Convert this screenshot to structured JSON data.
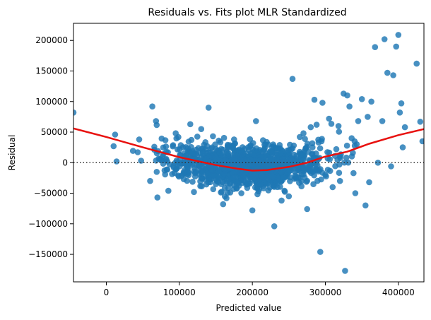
{
  "chart_data": {
    "type": "scatter",
    "title": "Residuals vs. Fits plot MLR Standardized",
    "xlabel": "Predicted value",
    "ylabel": "Residual",
    "xlim": [
      -45000,
      435000
    ],
    "ylim": [
      -195000,
      228000
    ],
    "xticks": [
      0,
      100000,
      200000,
      300000,
      400000
    ],
    "yticks": [
      -150000,
      -100000,
      -50000,
      0,
      50000,
      100000,
      150000,
      200000
    ],
    "xtick_labels": [
      "0",
      "100000",
      "200000",
      "300000",
      "400000"
    ],
    "ytick_labels": [
      "−150000",
      "−100000",
      "−50000",
      "0",
      "50000",
      "100000",
      "150000",
      "200000"
    ],
    "grid": false,
    "reference_line": {
      "y": 0,
      "style": "dotted",
      "color": "#333333"
    },
    "point_color": "#1f77b4",
    "trend_color": "#e8110f",
    "outliers": [
      {
        "x": -45000,
        "y": 82000
      },
      {
        "x": 10000,
        "y": 27000
      },
      {
        "x": 12000,
        "y": 46000
      },
      {
        "x": 14000,
        "y": 2000
      },
      {
        "x": 63000,
        "y": 92000
      },
      {
        "x": 68000,
        "y": 68000
      },
      {
        "x": 70000,
        "y": -57000
      },
      {
        "x": 85000,
        "y": -46000
      },
      {
        "x": 140000,
        "y": 90000
      },
      {
        "x": 175000,
        "y": 38000
      },
      {
        "x": 200000,
        "y": -78000
      },
      {
        "x": 205000,
        "y": 68000
      },
      {
        "x": 230000,
        "y": -104000
      },
      {
        "x": 255000,
        "y": 137000
      },
      {
        "x": 265000,
        "y": 42000
      },
      {
        "x": 275000,
        "y": -76000
      },
      {
        "x": 285000,
        "y": 103000
      },
      {
        "x": 288000,
        "y": 62000
      },
      {
        "x": 293000,
        "y": -146000
      },
      {
        "x": 296000,
        "y": 98000
      },
      {
        "x": 305000,
        "y": 72000
      },
      {
        "x": 318000,
        "y": 60000
      },
      {
        "x": 325000,
        "y": 113000
      },
      {
        "x": 327000,
        "y": -177000
      },
      {
        "x": 330000,
        "y": 110000
      },
      {
        "x": 333000,
        "y": 92000
      },
      {
        "x": 336000,
        "y": 40000
      },
      {
        "x": 341000,
        "y": -50000
      },
      {
        "x": 343000,
        "y": 30000
      },
      {
        "x": 350000,
        "y": 104000
      },
      {
        "x": 355000,
        "y": -70000
      },
      {
        "x": 358000,
        "y": 75000
      },
      {
        "x": 363000,
        "y": 100000
      },
      {
        "x": 368000,
        "y": 189000
      },
      {
        "x": 372000,
        "y": 0
      },
      {
        "x": 378000,
        "y": 68000
      },
      {
        "x": 381000,
        "y": 202000
      },
      {
        "x": 385000,
        "y": 147000
      },
      {
        "x": 390000,
        "y": -6000
      },
      {
        "x": 393000,
        "y": 143000
      },
      {
        "x": 397000,
        "y": 190000
      },
      {
        "x": 400000,
        "y": 209000
      },
      {
        "x": 402000,
        "y": 82000
      },
      {
        "x": 404000,
        "y": 97000
      },
      {
        "x": 406000,
        "y": 25000
      },
      {
        "x": 409000,
        "y": 58000
      },
      {
        "x": 425000,
        "y": 162000
      },
      {
        "x": 430000,
        "y": 67000
      },
      {
        "x": 433000,
        "y": 35000
      },
      {
        "x": 300000,
        "y": -20000
      },
      {
        "x": 310000,
        "y": -40000
      },
      {
        "x": 250000,
        "y": -55000
      },
      {
        "x": 240000,
        "y": -62000
      },
      {
        "x": 160000,
        "y": -68000
      },
      {
        "x": 120000,
        "y": -48000
      },
      {
        "x": 130000,
        "y": 55000
      },
      {
        "x": 115000,
        "y": 63000
      },
      {
        "x": 95000,
        "y": 48000
      },
      {
        "x": 60000,
        "y": -30000
      },
      {
        "x": 45000,
        "y": 38000
      },
      {
        "x": 270000,
        "y": 48000
      },
      {
        "x": 280000,
        "y": 58000
      },
      {
        "x": 315000,
        "y": 22000
      },
      {
        "x": 320000,
        "y": -30000
      },
      {
        "x": 345000,
        "y": 68000
      },
      {
        "x": 360000,
        "y": -32000
      }
    ],
    "cloud": {
      "count": 1100,
      "x_mean": 190000,
      "x_sd": 55000,
      "x_range": [
        35000,
        345000
      ],
      "residual_sd": 18000,
      "seed": 7
    },
    "trend": [
      {
        "x": -45000,
        "y": 56000
      },
      {
        "x": 0,
        "y": 42000
      },
      {
        "x": 50000,
        "y": 25000
      },
      {
        "x": 100000,
        "y": 9000
      },
      {
        "x": 150000,
        "y": -4000
      },
      {
        "x": 180000,
        "y": -10000
      },
      {
        "x": 200000,
        "y": -13000
      },
      {
        "x": 220000,
        "y": -12000
      },
      {
        "x": 250000,
        "y": -7000
      },
      {
        "x": 275000,
        "y": 0
      },
      {
        "x": 300000,
        "y": 10000
      },
      {
        "x": 330000,
        "y": 18000
      },
      {
        "x": 360000,
        "y": 31000
      },
      {
        "x": 400000,
        "y": 45000
      },
      {
        "x": 435000,
        "y": 55000
      }
    ]
  }
}
